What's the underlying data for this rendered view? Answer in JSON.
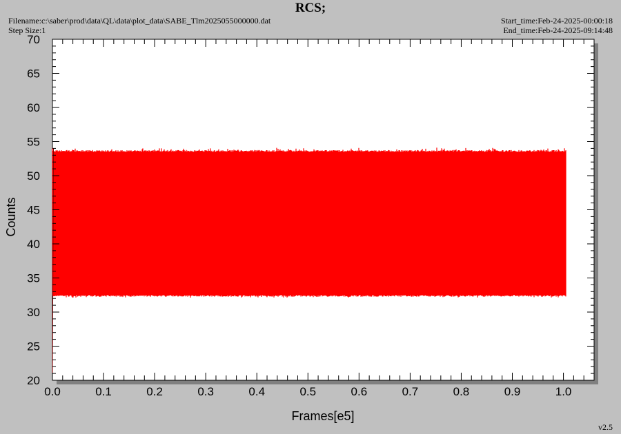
{
  "header": {
    "title": "RCS;",
    "filename": "Filename:c:\\saber\\prod\\data\\QL\\data\\plot_data\\SABE_Tlm2025055000000.dat",
    "step_size": "Step Size:1",
    "start_time": "Start_time:Feb-24-2025-00:00:18",
    "end_time": "End_time:Feb-24-2025-09:14:48"
  },
  "footer": {
    "version": "v2.5"
  },
  "chart_data": {
    "type": "line",
    "title": "RCS;",
    "xlabel": "Frames[e5]",
    "ylabel": "Counts",
    "xlim": [
      0.0,
      1.06
    ],
    "ylim": [
      20,
      70
    ],
    "x_ticks": [
      "0.0",
      "0.1",
      "0.2",
      "0.3",
      "0.4",
      "0.5",
      "0.6",
      "0.7",
      "0.8",
      "0.9",
      "1.0"
    ],
    "y_ticks": [
      "20",
      "25",
      "30",
      "35",
      "40",
      "45",
      "50",
      "55",
      "60",
      "65",
      "70"
    ],
    "grid": false,
    "series": [
      {
        "color": "#ff0000",
        "x_start": 0.0,
        "x_end": 1.005,
        "typical_min": 32.5,
        "typical_max": 53.5,
        "envelope_min": 32.1,
        "envelope_max": 54.1,
        "values": [
          {
            "x": 0.0,
            "y": 20.0
          },
          {
            "x": 0.002,
            "y": 54.0
          },
          {
            "x": 0.1,
            "y": 32.4
          },
          {
            "x": 0.2,
            "y": 53.8
          },
          {
            "x": 0.3,
            "y": 32.3
          },
          {
            "x": 0.4,
            "y": 53.7
          },
          {
            "x": 0.5,
            "y": 32.4
          },
          {
            "x": 0.6,
            "y": 53.6
          },
          {
            "x": 0.7,
            "y": 32.3
          },
          {
            "x": 0.8,
            "y": 53.7
          },
          {
            "x": 0.9,
            "y": 32.4
          },
          {
            "x": 1.0,
            "y": 53.8
          },
          {
            "x": 1.005,
            "y": 32.6
          }
        ]
      }
    ]
  }
}
